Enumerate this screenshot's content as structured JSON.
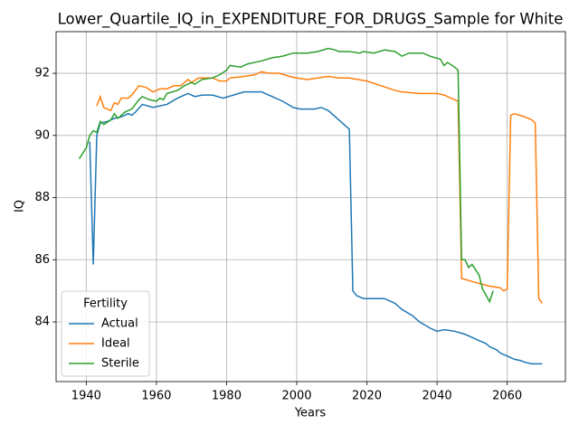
{
  "chart_data": {
    "type": "line",
    "title": "Lower_Quartile_IQ_in_EXPENDITURE_FOR_DRUGS_Sample for White",
    "xlabel": "Years",
    "ylabel": "IQ",
    "xlim": [
      1931.4,
      2076.6
    ],
    "xticks": [
      1940,
      1960,
      1980,
      2000,
      2020,
      2040,
      2060
    ],
    "ylim": [
      82.08,
      93.34
    ],
    "yticks": [
      84,
      86,
      88,
      90,
      92
    ],
    "grid": true,
    "legend_title": "Fertility",
    "legend_loc": "lower left",
    "series": [
      {
        "name": "Actual",
        "color": "#1f77b4",
        "x": [
          1941,
          1942,
          1943,
          1944,
          1946,
          1948,
          1950,
          1952,
          1953,
          1954,
          1956,
          1959,
          1961,
          1963,
          1966,
          1969,
          1971,
          1973,
          1976,
          1979,
          1982,
          1985,
          1988,
          1990,
          1993,
          1996,
          1999,
          2001,
          2005,
          2007,
          2009,
          2011,
          2013,
          2015,
          2016,
          2017,
          2019,
          2022,
          2025,
          2028,
          2030,
          2033,
          2035,
          2038,
          2040,
          2042,
          2045,
          2048,
          2050,
          2052,
          2054,
          2055,
          2057,
          2058,
          2060,
          2062,
          2064,
          2065,
          2067,
          2070
        ],
        "values": [
          89.8,
          85.85,
          90.0,
          90.4,
          90.45,
          90.55,
          90.6,
          90.7,
          90.65,
          90.75,
          91.0,
          90.9,
          90.95,
          91.0,
          91.2,
          91.35,
          91.25,
          91.3,
          91.3,
          91.2,
          91.3,
          91.4,
          91.4,
          91.4,
          91.25,
          91.1,
          90.9,
          90.85,
          90.85,
          90.9,
          90.8,
          90.6,
          90.4,
          90.2,
          85.0,
          84.85,
          84.75,
          84.75,
          84.75,
          84.6,
          84.4,
          84.2,
          84.0,
          83.8,
          83.7,
          83.75,
          83.7,
          83.6,
          83.5,
          83.4,
          83.3,
          83.2,
          83.1,
          83.0,
          82.9,
          82.8,
          82.75,
          82.7,
          82.65,
          82.65
        ]
      },
      {
        "name": "Ideal",
        "color": "#ff7f0e",
        "x": [
          1943,
          1944,
          1945,
          1947,
          1948,
          1949,
          1950,
          1952,
          1953,
          1955,
          1957,
          1959,
          1961,
          1963,
          1965,
          1967,
          1969,
          1970,
          1972,
          1976,
          1978,
          1980,
          1981,
          1985,
          1988,
          1990,
          1992,
          1995,
          1998,
          2000,
          2003,
          2006,
          2009,
          2012,
          2015,
          2020,
          2024,
          2028,
          2030,
          2035,
          2038,
          2040,
          2042,
          2045,
          2046,
          2047,
          2050,
          2055,
          2058,
          2059,
          2060,
          2061,
          2062,
          2065,
          2067,
          2068,
          2069,
          2070
        ],
        "values": [
          90.95,
          91.25,
          90.9,
          90.8,
          91.05,
          91.0,
          91.2,
          91.2,
          91.3,
          91.6,
          91.55,
          91.4,
          91.5,
          91.5,
          91.6,
          91.6,
          91.8,
          91.7,
          91.85,
          91.85,
          91.75,
          91.75,
          91.85,
          91.9,
          91.95,
          92.05,
          92.0,
          92.0,
          91.9,
          91.85,
          91.8,
          91.85,
          91.9,
          91.85,
          91.85,
          91.75,
          91.6,
          91.45,
          91.4,
          91.35,
          91.35,
          91.35,
          91.3,
          91.15,
          91.1,
          85.4,
          85.3,
          85.15,
          85.1,
          85.0,
          85.05,
          90.65,
          90.7,
          90.6,
          90.5,
          90.4,
          84.75,
          84.6
        ]
      },
      {
        "name": "Sterile",
        "color": "#2ca02c",
        "x": [
          1938,
          1940,
          1941,
          1942,
          1943,
          1944,
          1945,
          1947,
          1948,
          1949,
          1951,
          1953,
          1955,
          1956,
          1958,
          1960,
          1961,
          1962,
          1963,
          1966,
          1968,
          1970,
          1971,
          1973,
          1976,
          1978,
          1980,
          1981,
          1984,
          1986,
          1990,
          1993,
          1996,
          1999,
          2003,
          2006,
          2009,
          2011,
          2012,
          2015,
          2018,
          2019,
          2022,
          2025,
          2028,
          2030,
          2032,
          2034,
          2036,
          2038,
          2041,
          2042,
          2043,
          2045,
          2046,
          2047,
          2048,
          2049,
          2050,
          2052,
          2053,
          2055,
          2056
        ],
        "values": [
          89.25,
          89.6,
          90.0,
          90.15,
          90.1,
          90.45,
          90.35,
          90.5,
          90.7,
          90.55,
          90.75,
          90.85,
          91.15,
          91.25,
          91.15,
          91.1,
          91.2,
          91.15,
          91.35,
          91.45,
          91.6,
          91.7,
          91.65,
          91.8,
          91.85,
          91.95,
          92.1,
          92.25,
          92.2,
          92.3,
          92.4,
          92.5,
          92.55,
          92.65,
          92.65,
          92.7,
          92.8,
          92.75,
          92.7,
          92.7,
          92.65,
          92.7,
          92.65,
          92.75,
          92.7,
          92.55,
          92.65,
          92.65,
          92.65,
          92.55,
          92.45,
          92.25,
          92.35,
          92.2,
          92.1,
          86.0,
          86.0,
          85.75,
          85.85,
          85.5,
          85.05,
          84.65,
          85.0
        ]
      }
    ]
  }
}
